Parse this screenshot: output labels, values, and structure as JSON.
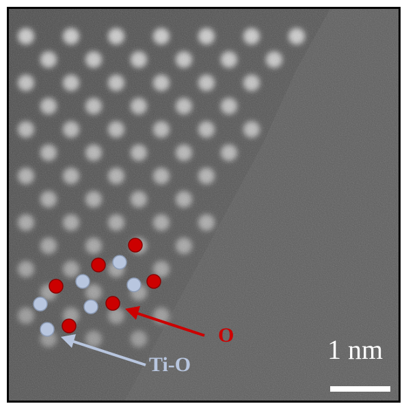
{
  "annotations": {
    "oxygen_label": "O",
    "oxygen_color": "#cc0000",
    "tio_label": "Ti-O",
    "tio_color": "#b8c6df"
  },
  "scale_bar": {
    "label": "1 nm"
  },
  "colors": {
    "background_gray": "#5a5a5a",
    "lattice_spot": "#e6e6e6",
    "frame": "#000000"
  }
}
